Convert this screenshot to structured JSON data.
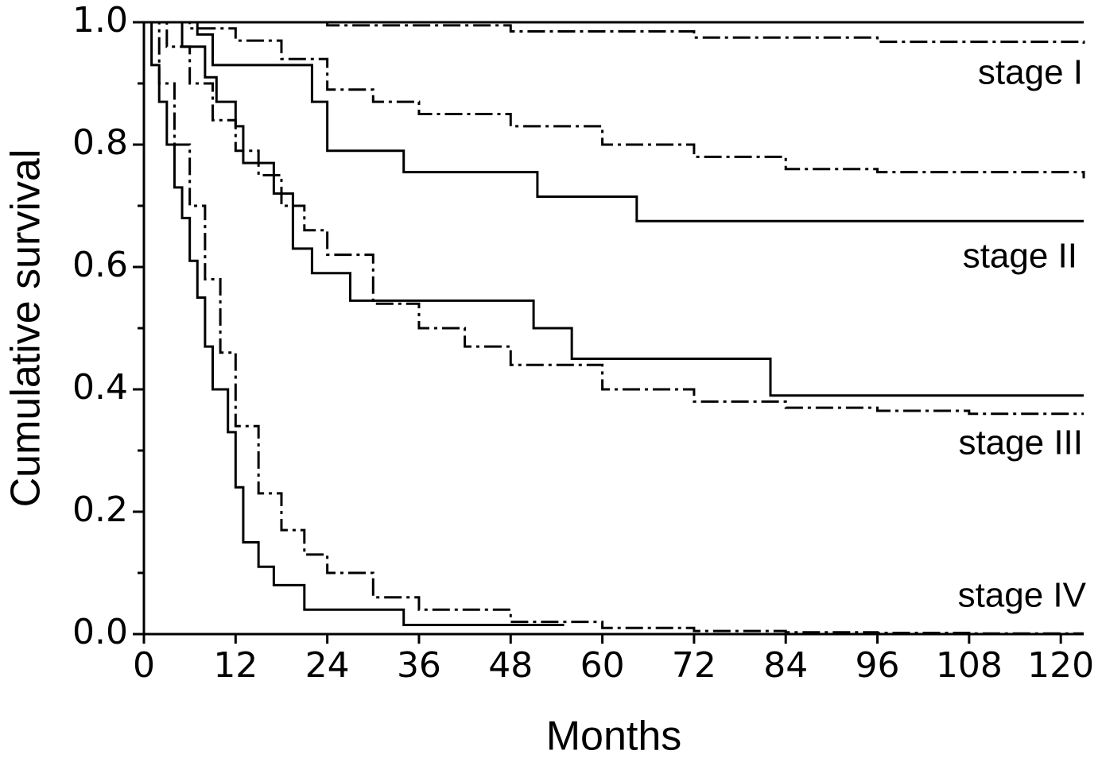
{
  "chart_data": {
    "type": "step",
    "x_label": "Months",
    "y_label": "Cumulative survival",
    "xlim": [
      0,
      123
    ],
    "ylim": [
      0,
      1
    ],
    "xticks": [
      0,
      12,
      24,
      36,
      48,
      60,
      72,
      84,
      96,
      108,
      120
    ],
    "yticks": [
      {
        "value": 0,
        "label": "0.0"
      },
      {
        "value": 0.2,
        "label": "0.2"
      },
      {
        "value": 0.4,
        "label": "0.4"
      },
      {
        "value": 0.6,
        "label": "0.6"
      },
      {
        "value": 0.8,
        "label": "0.8"
      },
      {
        "value": 1,
        "label": "1.0"
      }
    ],
    "yminorticks": [
      0.1,
      0.3,
      0.5,
      0.7,
      0.9
    ],
    "annotations": [
      "stage I",
      "stage II",
      "stage III",
      "stage IV"
    ],
    "series": [
      {
        "color": "#000000",
        "style": "solid",
        "x": [
          0,
          123
        ],
        "values": [
          1,
          1
        ]
      },
      {
        "color": "#000000",
        "style": "dashdot",
        "x": [
          0,
          24,
          48,
          72,
          96,
          123
        ],
        "values": [
          1,
          0.995,
          0.985,
          0.975,
          0.968,
          0.965
        ]
      },
      {
        "color": "#000000",
        "style": "solid",
        "x": [
          0,
          7,
          9,
          22,
          24,
          34,
          51.5,
          64.5,
          123
        ],
        "values": [
          1,
          0.98,
          0.93,
          0.87,
          0.79,
          0.755,
          0.715,
          0.675,
          0.675
        ]
      },
      {
        "color": "#000000",
        "style": "dashdot",
        "x": [
          0,
          6,
          12,
          18,
          24,
          30,
          36,
          48,
          60,
          72,
          84,
          96,
          108,
          120,
          123
        ],
        "values": [
          1,
          0.99,
          0.97,
          0.94,
          0.89,
          0.87,
          0.85,
          0.83,
          0.8,
          0.78,
          0.76,
          0.755,
          0.755,
          0.755,
          0.745
        ]
      },
      {
        "color": "#000000",
        "style": "solid",
        "x": [
          0,
          5,
          8,
          9.5,
          12,
          13,
          17,
          19.5,
          22,
          27,
          51,
          56,
          82,
          123
        ],
        "values": [
          1,
          0.96,
          0.91,
          0.87,
          0.83,
          0.77,
          0.72,
          0.63,
          0.59,
          0.545,
          0.5,
          0.45,
          0.39,
          0.39
        ]
      },
      {
        "color": "#000000",
        "style": "dashdot",
        "x": [
          0,
          3,
          6,
          9,
          12,
          15,
          18,
          21,
          24,
          30,
          36,
          42,
          48,
          60,
          72,
          84,
          96,
          108,
          120,
          123
        ],
        "values": [
          1,
          0.96,
          0.9,
          0.84,
          0.79,
          0.75,
          0.7,
          0.66,
          0.62,
          0.54,
          0.5,
          0.47,
          0.44,
          0.4,
          0.38,
          0.37,
          0.365,
          0.36,
          0.36,
          0.36
        ]
      },
      {
        "color": "#000000",
        "style": "solid",
        "x": [
          0,
          1,
          2,
          3,
          4,
          5,
          6,
          7,
          8,
          9,
          11,
          12,
          13,
          15,
          17,
          21,
          34,
          55
        ],
        "values": [
          1,
          0.93,
          0.87,
          0.8,
          0.73,
          0.68,
          0.61,
          0.55,
          0.47,
          0.4,
          0.33,
          0.24,
          0.15,
          0.11,
          0.08,
          0.04,
          0.015,
          0.015
        ]
      },
      {
        "color": "#000000",
        "style": "dashdot",
        "x": [
          0,
          2,
          4,
          6,
          8,
          10,
          12,
          15,
          18,
          21,
          24,
          30,
          36,
          48,
          60,
          72,
          84,
          96,
          108,
          120,
          123
        ],
        "values": [
          1,
          0.9,
          0.8,
          0.7,
          0.58,
          0.46,
          0.34,
          0.23,
          0.17,
          0.13,
          0.1,
          0.06,
          0.04,
          0.02,
          0.01,
          0.005,
          0.003,
          0.002,
          0.001,
          0.001,
          0.001
        ]
      }
    ]
  }
}
